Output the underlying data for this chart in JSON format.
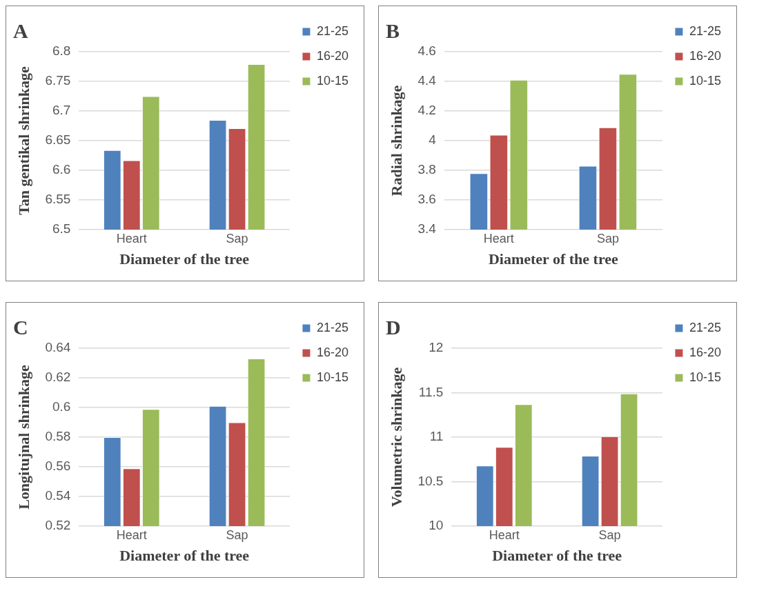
{
  "chart_data": [
    {
      "type": "bar",
      "title": "A",
      "xlabel": "Diameter of the tree",
      "ylabel": "Tan gentikal shrinkage",
      "categories": [
        "Heart",
        "Sap"
      ],
      "series": [
        {
          "name": "21-25",
          "color": "#4f81bd",
          "values": [
            6.634,
            6.685
          ]
        },
        {
          "name": "16-20",
          "color": "#c0504d",
          "values": [
            6.617,
            6.671
          ]
        },
        {
          "name": "10-15",
          "color": "#9bbb59",
          "values": [
            6.725,
            6.779
          ]
        }
      ],
      "ylim": [
        6.5,
        6.8
      ],
      "yticks": [
        6.5,
        6.55,
        6.6,
        6.65,
        6.7,
        6.75,
        6.8
      ],
      "grid": "y",
      "legend": "right"
    },
    {
      "type": "bar",
      "title": "B",
      "xlabel": "Diameter of the tree",
      "ylabel": "Radial shrinkage",
      "categories": [
        "Heart",
        "Sap"
      ],
      "series": [
        {
          "name": "21-25",
          "color": "#4f81bd",
          "values": [
            3.78,
            3.83
          ]
        },
        {
          "name": "16-20",
          "color": "#c0504d",
          "values": [
            4.04,
            4.09
          ]
        },
        {
          "name": "10-15",
          "color": "#9bbb59",
          "values": [
            4.41,
            4.45
          ]
        }
      ],
      "ylim": [
        3.4,
        4.6
      ],
      "yticks": [
        3.4,
        3.6,
        3.8,
        4,
        4.2,
        4.4,
        4.6
      ],
      "grid": "y",
      "legend": "right"
    },
    {
      "type": "bar",
      "title": "C",
      "xlabel": "Diameter of the tree",
      "ylabel": "Longitujnal shrinkage",
      "categories": [
        "Heart",
        "Sap"
      ],
      "series": [
        {
          "name": "21-25",
          "color": "#4f81bd",
          "values": [
            0.58,
            0.601
          ]
        },
        {
          "name": "16-20",
          "color": "#c0504d",
          "values": [
            0.559,
            0.59
          ]
        },
        {
          "name": "10-15",
          "color": "#9bbb59",
          "values": [
            0.599,
            0.633
          ]
        }
      ],
      "ylim": [
        0.52,
        0.64
      ],
      "yticks": [
        0.52,
        0.54,
        0.56,
        0.58,
        0.6,
        0.62,
        0.64
      ],
      "grid": "y",
      "legend": "right"
    },
    {
      "type": "bar",
      "title": "D",
      "xlabel": "Diameter of the tree",
      "ylabel": "Volumetric shrinkage",
      "categories": [
        "Heart",
        "Sap"
      ],
      "series": [
        {
          "name": "21-25",
          "color": "#4f81bd",
          "values": [
            10.68,
            10.79
          ]
        },
        {
          "name": "16-20",
          "color": "#c0504d",
          "values": [
            10.89,
            11.01
          ]
        },
        {
          "name": "10-15",
          "color": "#9bbb59",
          "values": [
            11.37,
            11.49
          ]
        }
      ],
      "ylim": [
        10,
        12
      ],
      "yticks": [
        10,
        10.5,
        11,
        11.5,
        12
      ],
      "grid": "y",
      "legend": "right"
    }
  ]
}
